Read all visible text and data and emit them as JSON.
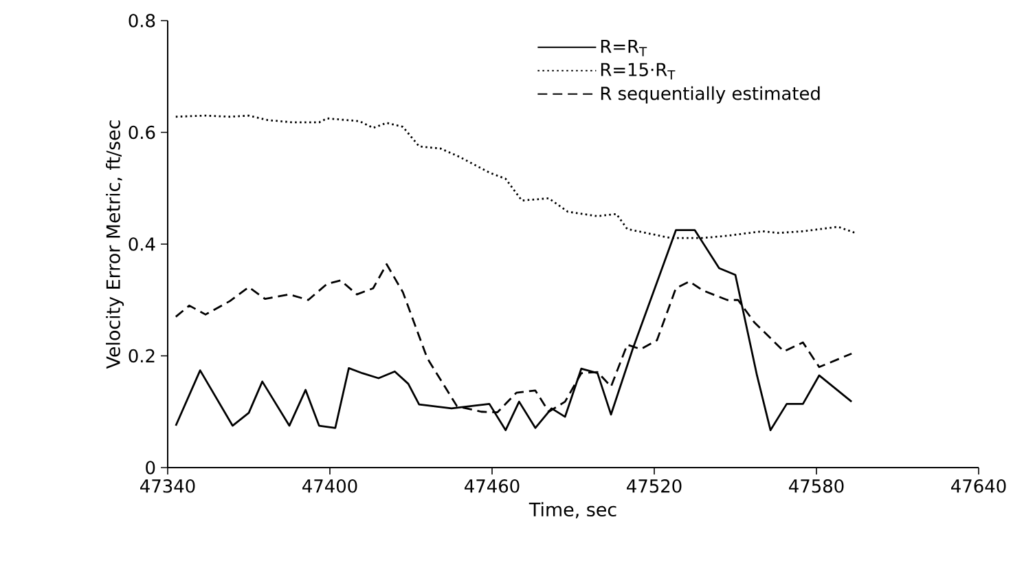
{
  "chart_data": {
    "type": "line",
    "xlabel": "Time, sec",
    "ylabel": "Velocity Error Metric, ft/sec",
    "xlim": [
      47340,
      47640
    ],
    "xticks": [
      47340,
      47400,
      47460,
      47520,
      47580,
      47640
    ],
    "ylim": [
      0,
      0.8
    ],
    "yticks": [
      0,
      0.2,
      0.4,
      0.6,
      0.8
    ],
    "legend": "top right",
    "grid": false,
    "series": [
      {
        "name": "R=R$_{T}$",
        "color": "#000000",
        "line_style": "solid",
        "x": [
          47343,
          47352,
          47364,
          47370,
          47375,
          47385,
          47391,
          47396,
          47402,
          47407,
          47412,
          47418,
          47424,
          47429,
          47433,
          47445,
          47459,
          47465,
          47470,
          47476,
          47482,
          47487,
          47493,
          47499,
          47504,
          47512,
          47522,
          47528,
          47535,
          47544,
          47550,
          47558,
          47563,
          47569,
          47575,
          47581,
          47593
        ],
        "values": [
          0.075,
          0.174,
          0.075,
          0.098,
          0.154,
          0.075,
          0.139,
          0.075,
          0.071,
          0.178,
          0.169,
          0.16,
          0.172,
          0.15,
          0.113,
          0.106,
          0.114,
          0.067,
          0.118,
          0.071,
          0.106,
          0.091,
          0.177,
          0.169,
          0.095,
          0.212,
          0.345,
          0.425,
          0.425,
          0.357,
          0.345,
          0.165,
          0.067,
          0.114,
          0.114,
          0.165,
          0.118
        ]
      },
      {
        "name": "R=15·R$_{T}$",
        "color": "#000000",
        "line_style": "dotted",
        "x": [
          47343,
          47354,
          47363,
          47370,
          47377,
          47386,
          47396,
          47399,
          47411,
          47416,
          47421,
          47427,
          47433,
          47441,
          47448,
          47459,
          47465,
          47471,
          47481,
          47488,
          47499,
          47506,
          47510,
          47518,
          47526,
          47538,
          47547,
          47560,
          47566,
          47575,
          47588,
          47595
        ],
        "values": [
          0.628,
          0.63,
          0.628,
          0.63,
          0.622,
          0.618,
          0.618,
          0.625,
          0.62,
          0.608,
          0.617,
          0.61,
          0.575,
          0.571,
          0.556,
          0.528,
          0.517,
          0.478,
          0.482,
          0.458,
          0.45,
          0.454,
          0.427,
          0.419,
          0.411,
          0.411,
          0.415,
          0.423,
          0.42,
          0.423,
          0.431,
          0.419
        ]
      },
      {
        "name": "R sequentially estimated",
        "color": "#000000",
        "line_style": "dashed",
        "x": [
          47343,
          47348,
          47354,
          47363,
          47370,
          47376,
          47385,
          47392,
          47399,
          47404,
          47410,
          47416,
          47421,
          47427,
          47436,
          47447,
          47456,
          47462,
          47469,
          47476,
          47481,
          47487,
          47493,
          47499,
          47504,
          47510,
          47515,
          47521,
          47528,
          47533,
          47538,
          47547,
          47551,
          47557,
          47568,
          47575,
          47581,
          47593
        ],
        "values": [
          0.27,
          0.29,
          0.274,
          0.298,
          0.323,
          0.302,
          0.31,
          0.3,
          0.329,
          0.335,
          0.31,
          0.321,
          0.364,
          0.314,
          0.196,
          0.11,
          0.1,
          0.099,
          0.134,
          0.138,
          0.1,
          0.118,
          0.169,
          0.171,
          0.145,
          0.22,
          0.212,
          0.228,
          0.321,
          0.333,
          0.317,
          0.3,
          0.3,
          0.26,
          0.208,
          0.224,
          0.18,
          0.204
        ]
      }
    ]
  }
}
